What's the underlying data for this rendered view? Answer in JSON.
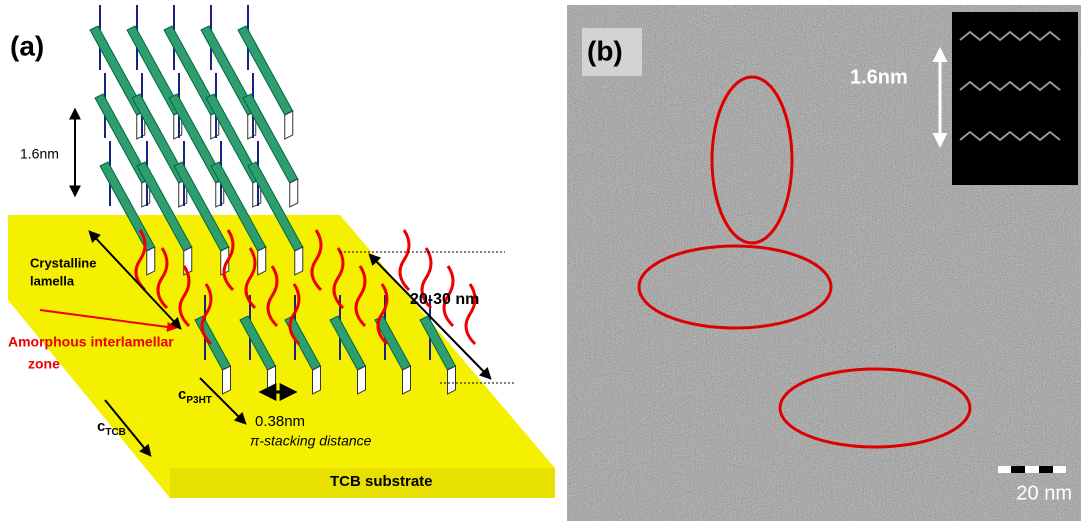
{
  "panel_a": {
    "label": "(a)",
    "layer_spacing": "1.6nm",
    "crystalline": [
      "Crystalline",
      "lamella"
    ],
    "amorphous": [
      "Amorphous interlamellar",
      "zone"
    ],
    "lamella_size": "20-30 nm",
    "c_tcb": {
      "text": "c",
      "sub": "TCB"
    },
    "c_p3ht": {
      "text": "c",
      "sub": "P3HT"
    },
    "stacking": "0.38nm",
    "stacking_caption": "π-stacking distance",
    "substrate": "TCB substrate"
  },
  "panel_b": {
    "label": "(b)",
    "inset_spacing": "1.6nm",
    "scale_bar": "20 nm"
  }
}
